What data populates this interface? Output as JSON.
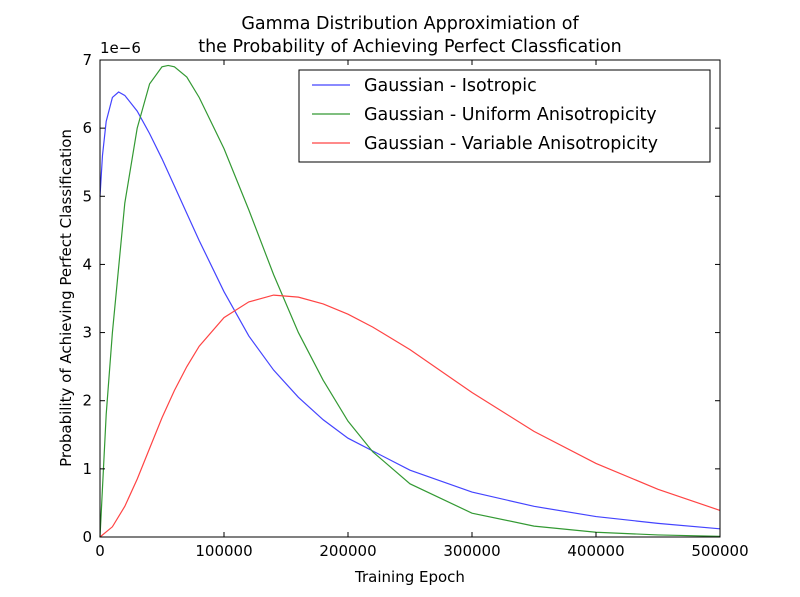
{
  "chart_data": {
    "type": "line",
    "title_lines": [
      "Gamma Distribution Approximiation of",
      "the Probability of Achieving Perfect Classfication"
    ],
    "xlabel": "Training Epoch",
    "ylabel": "Probability of Achieving Perfect Classification",
    "y_offset_label": "1e−6",
    "xlim": [
      0,
      500000
    ],
    "ylim": [
      0,
      7e-06
    ],
    "xticks": [
      0,
      100000,
      200000,
      300000,
      400000,
      500000
    ],
    "xtick_labels": [
      "0",
      "100000",
      "200000",
      "300000",
      "400000",
      "500000"
    ],
    "yticks": [
      0,
      1e-06,
      2e-06,
      3e-06,
      4e-06,
      5e-06,
      6e-06,
      7e-06
    ],
    "ytick_labels": [
      "0",
      "1",
      "2",
      "3",
      "4",
      "5",
      "6",
      "7"
    ],
    "grid": false,
    "legend_position": "upper right",
    "series": [
      {
        "name": "Gaussian - Isotropic",
        "color": "#4444ff",
        "x": [
          0,
          2000,
          5000,
          10000,
          15000,
          20000,
          30000,
          40000,
          50000,
          60000,
          70000,
          80000,
          100000,
          120000,
          140000,
          160000,
          180000,
          200000,
          250000,
          300000,
          350000,
          400000,
          450000,
          500000
        ],
        "y": [
          5e-06,
          5.6e-06,
          6.1e-06,
          6.45e-06,
          6.53e-06,
          6.48e-06,
          6.25e-06,
          5.92e-06,
          5.55e-06,
          5.15e-06,
          4.75e-06,
          4.35e-06,
          3.6e-06,
          2.95e-06,
          2.45e-06,
          2.05e-06,
          1.72e-06,
          1.45e-06,
          9.8e-07,
          6.6e-07,
          4.5e-07,
          3e-07,
          2e-07,
          1.2e-07
        ]
      },
      {
        "name": "Gaussian - Uniform Anisotropicity",
        "color": "#339933",
        "x": [
          0,
          5000,
          10000,
          20000,
          30000,
          40000,
          50000,
          55000,
          60000,
          70000,
          80000,
          100000,
          120000,
          140000,
          160000,
          180000,
          200000,
          220000,
          250000,
          300000,
          350000,
          400000,
          450000,
          500000
        ],
        "y": [
          0,
          1.8e-06,
          3e-06,
          4.9e-06,
          6e-06,
          6.65e-06,
          6.9e-06,
          6.92e-06,
          6.9e-06,
          6.75e-06,
          6.45e-06,
          5.7e-06,
          4.8e-06,
          3.85e-06,
          3e-06,
          2.3e-06,
          1.7e-06,
          1.25e-06,
          7.8e-07,
          3.5e-07,
          1.6e-07,
          7e-08,
          3e-08,
          1e-08
        ]
      },
      {
        "name": "Gaussian - Variable Anisotropicity",
        "color": "#ff4444",
        "x": [
          0,
          10000,
          20000,
          30000,
          40000,
          50000,
          60000,
          70000,
          80000,
          100000,
          120000,
          140000,
          160000,
          180000,
          200000,
          220000,
          250000,
          300000,
          350000,
          400000,
          450000,
          500000
        ],
        "y": [
          0,
          1.5e-07,
          4.5e-07,
          8.5e-07,
          1.3e-06,
          1.75e-06,
          2.15e-06,
          2.5e-06,
          2.8e-06,
          3.22e-06,
          3.45e-06,
          3.55e-06,
          3.52e-06,
          3.42e-06,
          3.27e-06,
          3.08e-06,
          2.75e-06,
          2.12e-06,
          1.55e-06,
          1.08e-06,
          7e-07,
          3.9e-07
        ]
      }
    ]
  }
}
